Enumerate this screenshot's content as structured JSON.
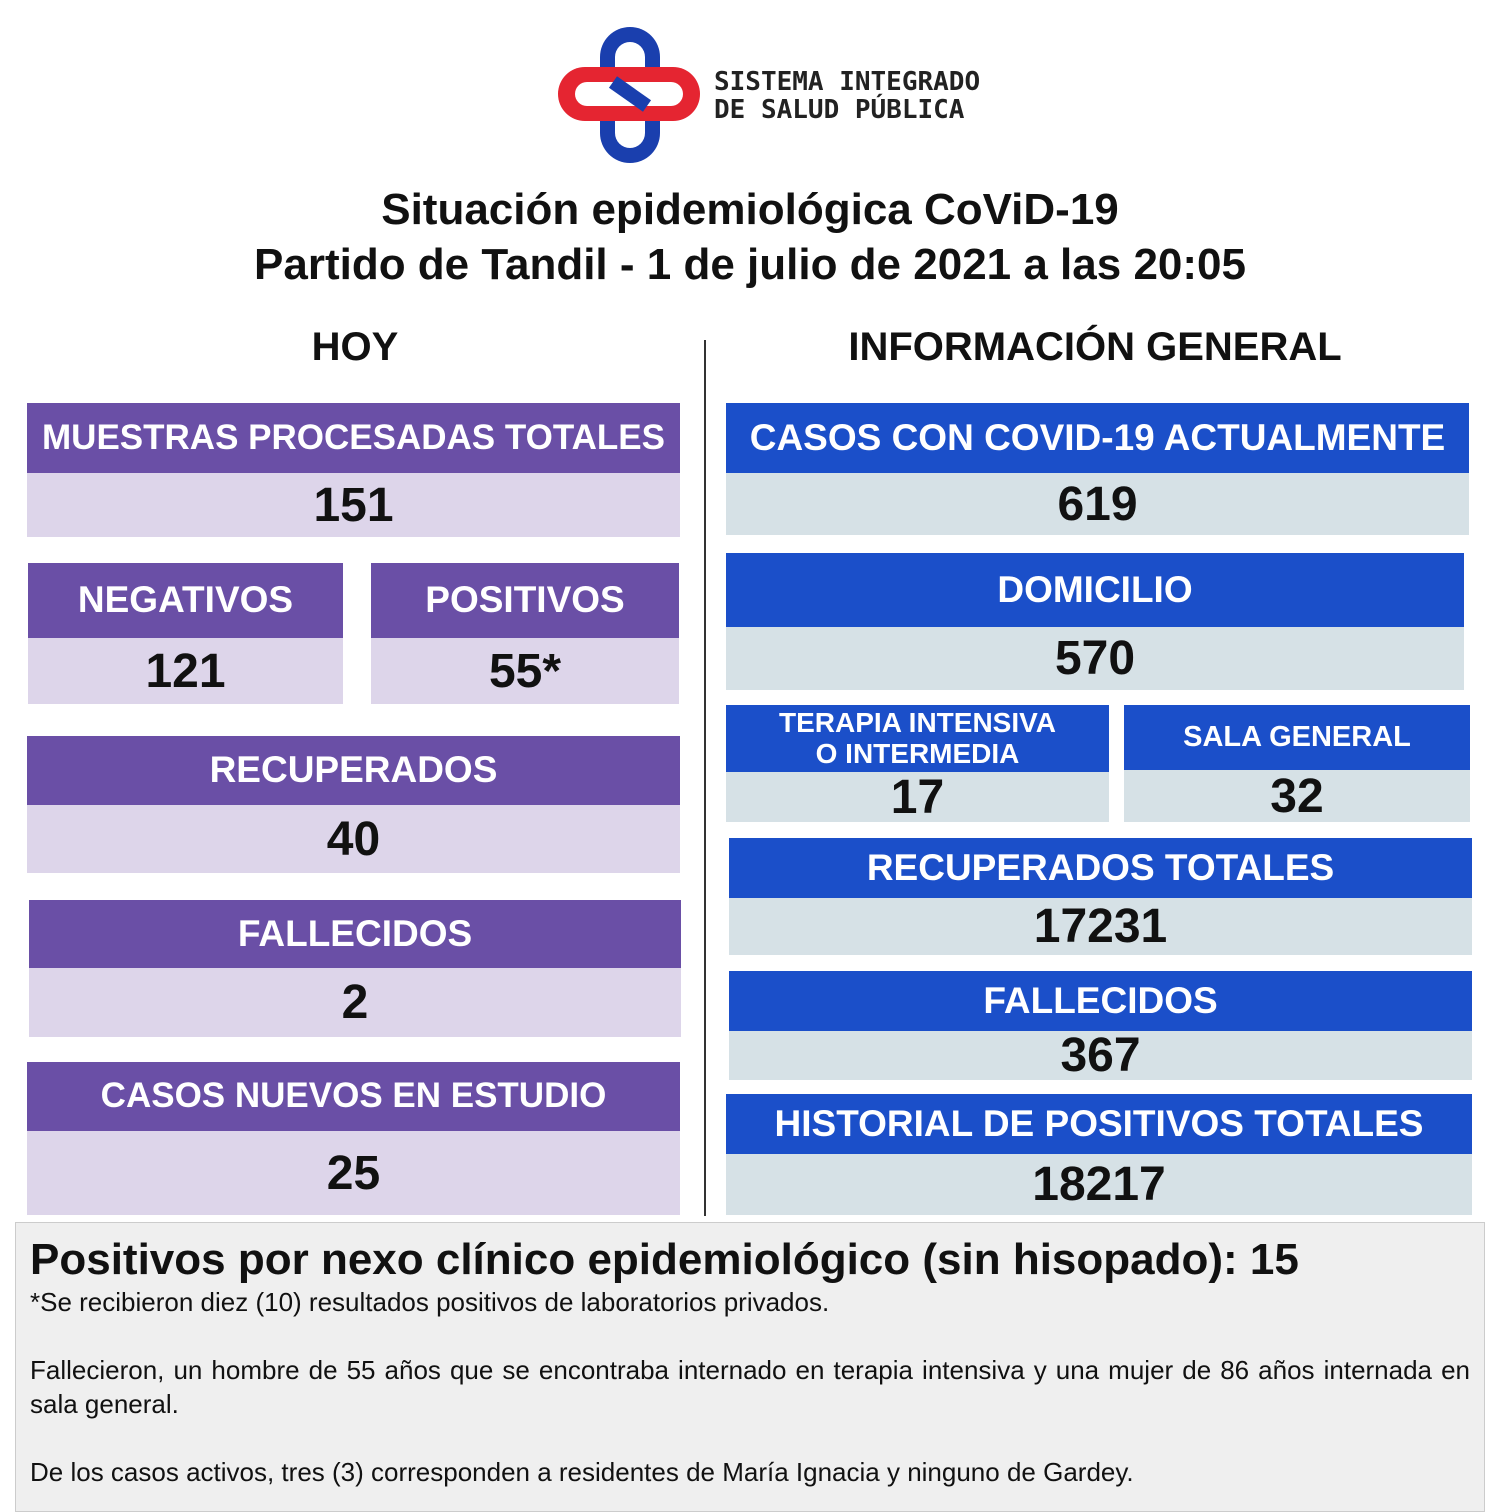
{
  "logo": {
    "line1": "SISTEMA INTEGRADO",
    "line2": "DE SALUD PÚBLICA"
  },
  "title": {
    "line1": "Situación epidemiológica CoViD-19",
    "line2": "Partido de Tandil - 1 de julio de 2021 a las 20:05"
  },
  "today": {
    "heading": "HOY",
    "boxes": [
      {
        "label": "MUESTRAS PROCESADAS TOTALES",
        "value": "151"
      },
      {
        "label": "NEGATIVOS",
        "value": "121"
      },
      {
        "label": "POSITIVOS",
        "value": "55*"
      },
      {
        "label": "RECUPERADOS",
        "value": "40"
      },
      {
        "label": "FALLECIDOS",
        "value": "2"
      },
      {
        "label": "CASOS NUEVOS EN ESTUDIO",
        "value": "25"
      }
    ]
  },
  "general": {
    "heading": "INFORMACIÓN GENERAL",
    "boxes": [
      {
        "label": "CASOS CON COVID-19 ACTUALMENTE",
        "value": "619"
      },
      {
        "label": "DOMICILIO",
        "value": "570"
      },
      {
        "label": [
          "TERAPIA INTENSIVA",
          "O INTERMEDIA"
        ],
        "value": "17"
      },
      {
        "label": "SALA GENERAL",
        "value": "32"
      },
      {
        "label": "RECUPERADOS TOTALES",
        "value": "17231"
      },
      {
        "label": "FALLECIDOS",
        "value": "367"
      },
      {
        "label": "HISTORIAL DE POSITIVOS TOTALES",
        "value": "18217"
      }
    ]
  },
  "footer": {
    "headline": "Positivos por nexo clínico epidemiológico (sin hisopado): 15",
    "note": "*Se recibieron diez (10) resultados positivos de laboratorios privados.",
    "paragraphs": [
      "Fallecieron, un hombre de 55 años que se encontraba internado en terapia intensiva y una mujer de 86 años internada en sala general.",
      "De los casos activos, tres (3) corresponden a residentes de María Ignacia y ninguno de Gardey."
    ]
  }
}
